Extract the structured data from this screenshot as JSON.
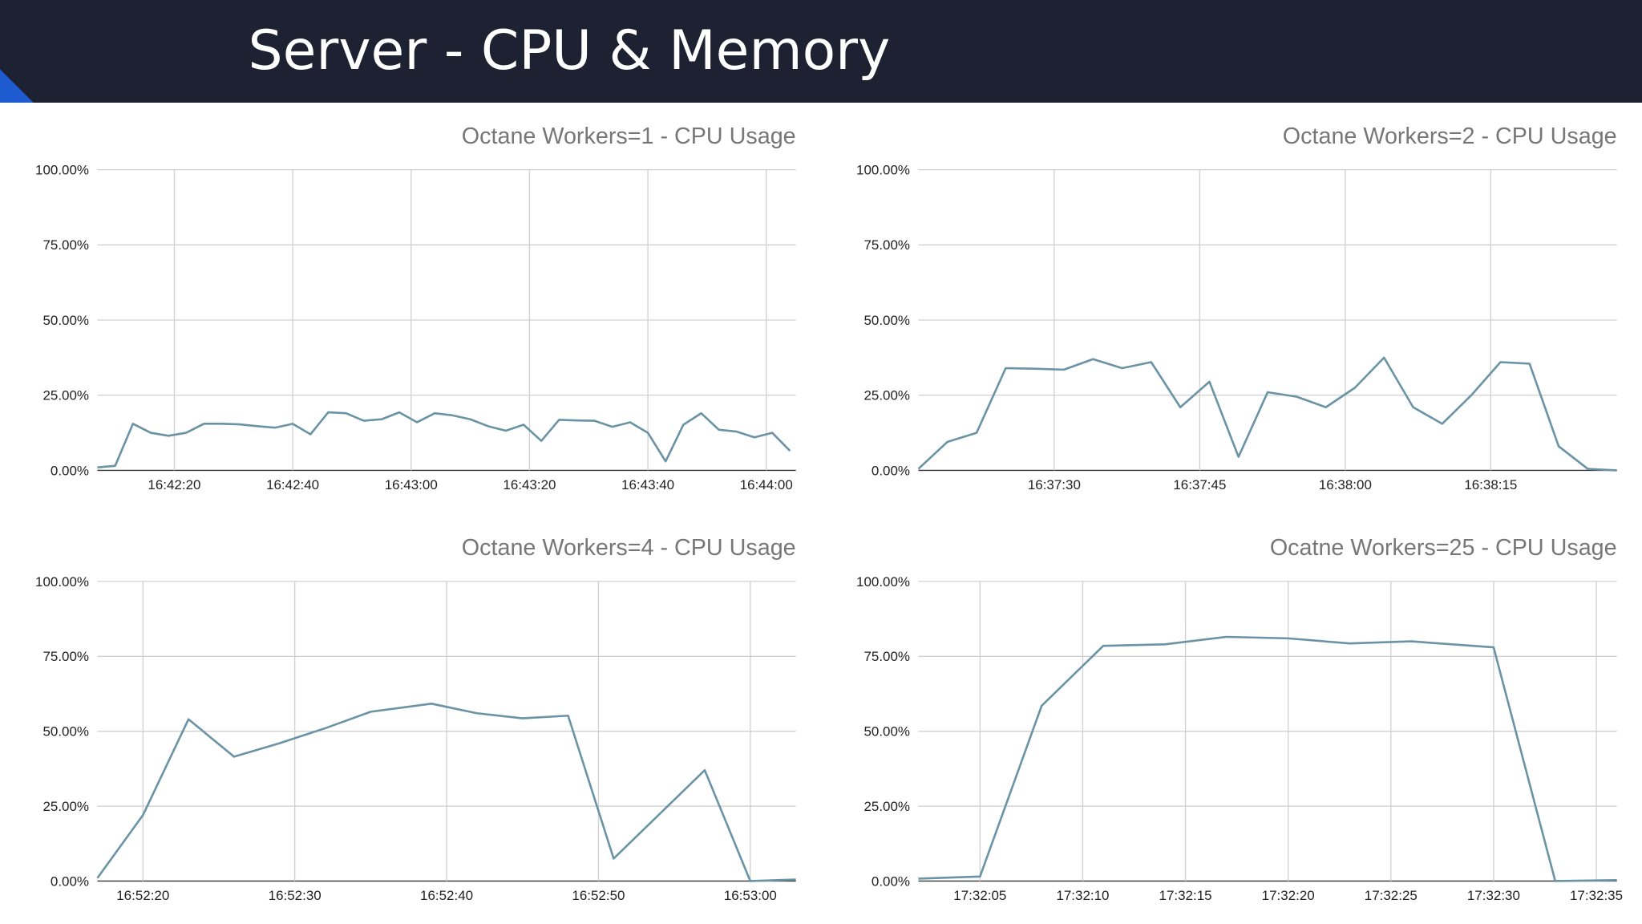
{
  "header": {
    "title": "Server - CPU & Memory"
  },
  "chart_data": [
    {
      "type": "line",
      "title": "Octane Workers=1 - CPU Usage",
      "color": "#6a93a5",
      "grid": true,
      "x": [
        "16:42:07",
        "16:42:10",
        "16:42:13",
        "16:42:16",
        "16:42:19",
        "16:42:22",
        "16:42:25",
        "16:42:28",
        "16:42:31",
        "16:42:34",
        "16:42:37",
        "16:42:40",
        "16:42:43",
        "16:42:46",
        "16:42:49",
        "16:42:52",
        "16:42:55",
        "16:42:58",
        "16:43:01",
        "16:43:04",
        "16:43:07",
        "16:43:10",
        "16:43:13",
        "16:43:16",
        "16:43:19",
        "16:43:22",
        "16:43:25",
        "16:43:28",
        "16:43:31",
        "16:43:34",
        "16:43:37",
        "16:43:40",
        "16:43:43",
        "16:43:46",
        "16:43:49",
        "16:43:52",
        "16:43:55",
        "16:43:58",
        "16:44:01",
        "16:44:04"
      ],
      "values": [
        1,
        1.5,
        15.5,
        12.5,
        11.5,
        12.5,
        15.5,
        15.5,
        15.3,
        14.7,
        14.2,
        15.5,
        12,
        19.3,
        19,
        16.5,
        17,
        19.3,
        16,
        19,
        18.3,
        17,
        14.7,
        13.2,
        15.2,
        9.8,
        16.8,
        16.6,
        16.5,
        14.5,
        16,
        12.5,
        3,
        15.2,
        19,
        13.5,
        12.9,
        11,
        12.5,
        6.5
      ],
      "xlim": [
        "16:42:07",
        "16:44:05"
      ],
      "xticks": [
        "16:42:20",
        "16:42:40",
        "16:43:00",
        "16:43:20",
        "16:43:40",
        "16:44:00"
      ],
      "ylim": [
        0,
        100
      ],
      "yticks": [
        {
          "value": 0,
          "label": "0.00%"
        },
        {
          "value": 25,
          "label": "25.00%"
        },
        {
          "value": 50,
          "label": "50.00%"
        },
        {
          "value": 75,
          "label": "75.00%"
        },
        {
          "value": 100,
          "label": "100.00%"
        }
      ]
    },
    {
      "type": "line",
      "title": "Octane Workers=2 - CPU Usage",
      "color": "#6a93a5",
      "grid": true,
      "x": [
        "16:37:16",
        "16:37:19",
        "16:37:22",
        "16:37:25",
        "16:37:28",
        "16:37:31",
        "16:37:34",
        "16:37:37",
        "16:37:40",
        "16:37:43",
        "16:37:46",
        "16:37:49",
        "16:37:52",
        "16:37:55",
        "16:37:58",
        "16:38:01",
        "16:38:04",
        "16:38:07",
        "16:38:10",
        "16:38:13",
        "16:38:16",
        "16:38:19",
        "16:38:22",
        "16:38:25",
        "16:38:28"
      ],
      "values": [
        0.5,
        9.5,
        12.5,
        34,
        33.8,
        33.5,
        37,
        34,
        36,
        21,
        29.5,
        4.5,
        26,
        24.5,
        21,
        27.5,
        37.5,
        21,
        15.5,
        25,
        36,
        35.5,
        8,
        0.5,
        0
      ],
      "xlim": [
        "16:37:16",
        "16:38:28"
      ],
      "xticks": [
        "16:37:30",
        "16:37:45",
        "16:38:00",
        "16:38:15"
      ],
      "ylim": [
        0,
        100
      ],
      "yticks": [
        {
          "value": 0,
          "label": "0.00%"
        },
        {
          "value": 25,
          "label": "25.00%"
        },
        {
          "value": 50,
          "label": "50.00%"
        },
        {
          "value": 75,
          "label": "75.00%"
        },
        {
          "value": 100,
          "label": "100.00%"
        }
      ]
    },
    {
      "type": "line",
      "title": "Octane Workers=4 - CPU Usage",
      "color": "#6a93a5",
      "grid": true,
      "x": [
        "16:52:17",
        "16:52:20",
        "16:52:23",
        "16:52:26",
        "16:52:29",
        "16:52:32",
        "16:52:35",
        "16:52:39",
        "16:52:42",
        "16:52:45",
        "16:52:48",
        "16:52:51",
        "16:52:57",
        "16:53:00",
        "16:53:03"
      ],
      "values": [
        1,
        22,
        54,
        41.5,
        46,
        51,
        56.5,
        59.2,
        56,
        54.3,
        55.2,
        7.5,
        37,
        0,
        0.5
      ],
      "xlim": [
        "16:52:17",
        "16:53:03"
      ],
      "xticks": [
        "16:52:20",
        "16:52:30",
        "16:52:40",
        "16:52:50",
        "16:53:00"
      ],
      "ylim": [
        0,
        100
      ],
      "yticks": [
        {
          "value": 0,
          "label": "0.00%"
        },
        {
          "value": 25,
          "label": "25.00%"
        },
        {
          "value": 50,
          "label": "50.00%"
        },
        {
          "value": 75,
          "label": "75.00%"
        },
        {
          "value": 100,
          "label": "100.00%"
        }
      ]
    },
    {
      "type": "line",
      "title": "Ocatne Workers=25 - CPU Usage",
      "color": "#6a93a5",
      "grid": true,
      "x": [
        "17:32:02",
        "17:32:05",
        "17:32:08",
        "17:32:11",
        "17:32:14",
        "17:32:17",
        "17:32:20",
        "17:32:23",
        "17:32:26",
        "17:32:30",
        "17:32:33",
        "17:32:36"
      ],
      "values": [
        0.8,
        1.5,
        58.5,
        78.5,
        79,
        81.5,
        81,
        79.3,
        80,
        78,
        0,
        0.3
      ],
      "xlim": [
        "17:32:02",
        "17:32:36"
      ],
      "xticks": [
        "17:32:05",
        "17:32:10",
        "17:32:15",
        "17:32:20",
        "17:32:25",
        "17:32:30",
        "17:32:35"
      ],
      "ylim": [
        0,
        100
      ],
      "yticks": [
        {
          "value": 0,
          "label": "0.00%"
        },
        {
          "value": 25,
          "label": "25.00%"
        },
        {
          "value": 50,
          "label": "50.00%"
        },
        {
          "value": 75,
          "label": "75.00%"
        },
        {
          "value": 100,
          "label": "100.00%"
        }
      ]
    }
  ]
}
